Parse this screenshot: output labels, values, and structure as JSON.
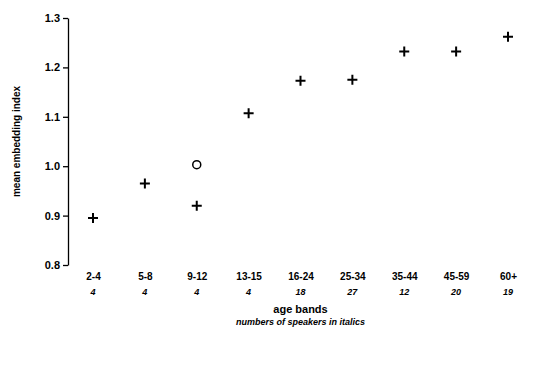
{
  "chart_data": {
    "type": "scatter",
    "xlabel": "age bands",
    "xlabel_note": "numbers of speakers in italics",
    "ylabel": "mean embedding index",
    "categories": [
      "2-4",
      "5-8",
      "9-12",
      "13-15",
      "16-24",
      "25-34",
      "35-44",
      "45-59",
      "60+"
    ],
    "speaker_counts": [
      4,
      4,
      4,
      4,
      18,
      27,
      12,
      20,
      19
    ],
    "series": [
      {
        "marker": "cross",
        "color": "#000000",
        "values": [
          0.895,
          0.965,
          0.92,
          1.107,
          1.173,
          1.175,
          1.232,
          1.232,
          1.262
        ]
      },
      {
        "marker": "circle",
        "color": "#000000",
        "values": [
          null,
          null,
          1.003,
          null,
          null,
          null,
          null,
          null,
          null
        ]
      }
    ],
    "ylim": [
      0.8,
      1.3
    ],
    "yticks": [
      0.8,
      0.9,
      {
        "value": 1,
        "label": "1.0"
      },
      1.1,
      1.2,
      1.3
    ],
    "grid": false
  }
}
